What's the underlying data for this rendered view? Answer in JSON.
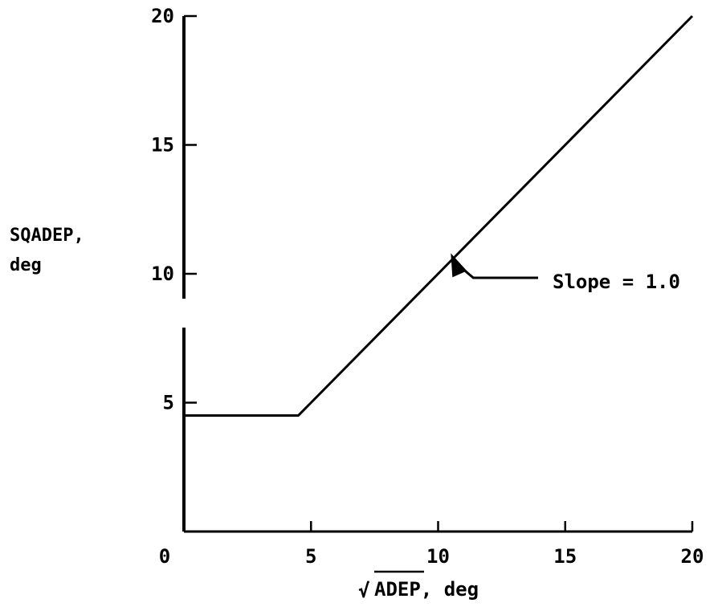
{
  "chart_data": {
    "type": "line",
    "xlabel": "ADEP, deg",
    "xlabel_radical": "√",
    "ylabel_line1": "SQADEP,",
    "ylabel_line2": "deg",
    "xlim": [
      0,
      20
    ],
    "ylim": [
      0,
      20
    ],
    "xticks": [
      0,
      5,
      10,
      15,
      20
    ],
    "yticks": [
      5,
      10,
      15,
      20
    ],
    "grid": false,
    "series": [
      {
        "x": [
          0,
          4.5,
          20
        ],
        "y": [
          4.5,
          4.5,
          20
        ]
      }
    ],
    "annotation": {
      "text": "Slope = 1.0",
      "target": [
        10.5,
        10.8
      ]
    }
  }
}
